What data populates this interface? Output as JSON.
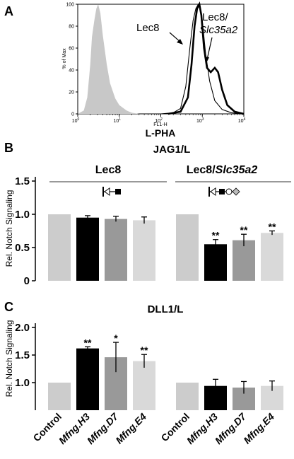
{
  "panels": {
    "a": "A",
    "b": "B",
    "c": "C"
  },
  "chart_data": [
    {
      "type": "line",
      "id": "A",
      "xlabel": "L-PHA",
      "xlabel_small": "FL1-H",
      "ylabel": "% of Max",
      "xscale": "log",
      "xlim": [
        1,
        10000
      ],
      "ylim": [
        0,
        100
      ],
      "x_ticks": [
        "10^0",
        "10^1",
        "10^2",
        "10^3",
        "10^4"
      ],
      "y_ticks": [
        0,
        20,
        40,
        60,
        80,
        100
      ],
      "series": [
        {
          "label_part1": "Lec8",
          "kind": "thin-outline",
          "points": [
            [
              100,
              0
            ],
            [
              200,
              1
            ],
            [
              300,
              5
            ],
            [
              400,
              25
            ],
            [
              500,
              60
            ],
            [
              600,
              85
            ],
            [
              700,
              96
            ],
            [
              800,
              100
            ],
            [
              900,
              95
            ],
            [
              1000,
              85
            ],
            [
              1200,
              55
            ],
            [
              1500,
              30
            ],
            [
              2000,
              12
            ],
            [
              3000,
              4
            ],
            [
              5000,
              1
            ],
            [
              10000,
              0
            ]
          ]
        },
        {
          "label_part1": "Lec8/",
          "label_part2": "Slc35a2",
          "kind": "thick-outline",
          "points": [
            [
              150,
              0
            ],
            [
              300,
              2
            ],
            [
              450,
              15
            ],
            [
              550,
              45
            ],
            [
              650,
              80
            ],
            [
              750,
              96
            ],
            [
              850,
              100
            ],
            [
              950,
              90
            ],
            [
              1100,
              60
            ],
            [
              1300,
              42
            ],
            [
              1600,
              38
            ],
            [
              2000,
              42
            ],
            [
              2400,
              38
            ],
            [
              3000,
              22
            ],
            [
              4000,
              8
            ],
            [
              6000,
              2
            ],
            [
              10000,
              0
            ]
          ]
        },
        {
          "kind": "filled-control",
          "points": [
            [
              1,
              0
            ],
            [
              1.4,
              3
            ],
            [
              1.7,
              15
            ],
            [
              2,
              45
            ],
            [
              2.2,
              70
            ],
            [
              2.5,
              85
            ],
            [
              2.8,
              96
            ],
            [
              3.1,
              100
            ],
            [
              3.5,
              92
            ],
            [
              4,
              72
            ],
            [
              5,
              45
            ],
            [
              6,
              28
            ],
            [
              8,
              14
            ],
            [
              10,
              8
            ],
            [
              15,
              3
            ],
            [
              20,
              1
            ],
            [
              30,
              0
            ]
          ]
        }
      ]
    },
    {
      "type": "bar",
      "id": "B",
      "title": "JAG1/L",
      "ylabel": "Rel. Notch Signaling",
      "ylim": [
        0,
        1.5
      ],
      "y_ticks": [
        "0",
        "0.5",
        "1.0",
        "1.5"
      ],
      "groups": [
        {
          "name": "Lec8",
          "values": [
            1.0,
            0.95,
            0.93,
            0.91
          ],
          "errors": [
            0,
            0.03,
            0.04,
            0.05
          ],
          "sig": [
            "",
            "",
            "",
            ""
          ]
        },
        {
          "name_part1": "Lec8/",
          "name_part2": "Slc35a2",
          "values": [
            1.0,
            0.55,
            0.61,
            0.72
          ],
          "errors": [
            0,
            0.07,
            0.09,
            0.03
          ],
          "sig": [
            "",
            "**",
            "**",
            "**"
          ]
        }
      ],
      "bar_colors": [
        "#cccccc",
        "#000000",
        "#999999",
        "#d9d9d9"
      ]
    },
    {
      "type": "bar",
      "id": "C",
      "title": "DLL1/L",
      "ylabel": "Rel. Notch Signaling",
      "ylim": [
        0,
        2.0
      ],
      "y_ticks": [
        "1.0",
        "1.5",
        "2.0"
      ],
      "categories": [
        "Control",
        "Mfng.H3",
        "Mfng.D7",
        "Mfng.E4"
      ],
      "groups": [
        {
          "values": [
            1.0,
            1.62,
            1.46,
            1.39
          ],
          "errors": [
            0,
            0.03,
            0.27,
            0.12
          ],
          "sig": [
            "",
            "**",
            "*",
            "**"
          ]
        },
        {
          "values": [
            1.0,
            0.94,
            0.91,
            0.94
          ],
          "errors": [
            0,
            0.12,
            0.11,
            0.09
          ],
          "sig": [
            "",
            "",
            "",
            ""
          ]
        }
      ],
      "bar_colors": [
        "#cccccc",
        "#000000",
        "#999999",
        "#d9d9d9"
      ]
    }
  ]
}
